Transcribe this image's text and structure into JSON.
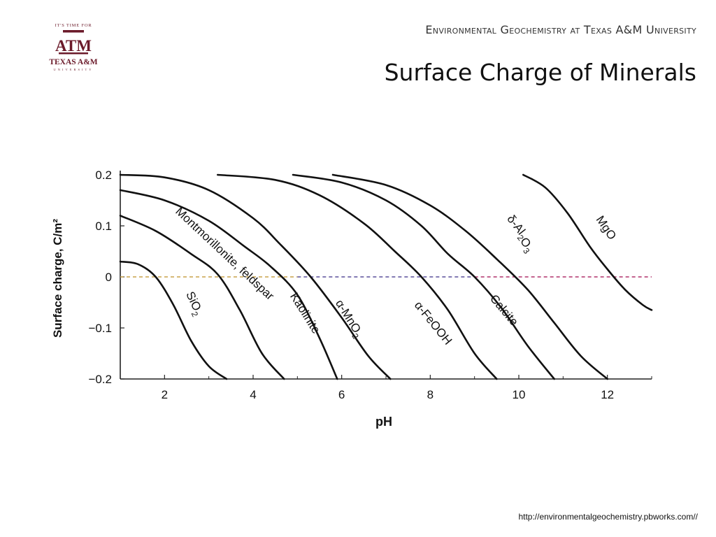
{
  "header": {
    "institution_line": "Environmental Geochemistry at Texas A&M University",
    "slide_title": "Surface Charge of Minerals"
  },
  "logo": {
    "tagline": "IT'S TIME FOR",
    "mark": "ATM",
    "name": "TEXAS A&M",
    "subname": "UNIVERSITY",
    "color": "#6b1a2a"
  },
  "footer": {
    "source_url": "http://environmentalgeochemistry.pbworks.com//"
  },
  "chart_data": {
    "type": "line",
    "xlabel": "pH",
    "ylabel": "Surface charge, C/m²",
    "xlim": [
      1,
      13
    ],
    "ylim": [
      -0.2,
      0.2
    ],
    "xticks": [
      2,
      4,
      6,
      8,
      10,
      12
    ],
    "xtick_labels": [
      "2",
      "4",
      "6",
      "8",
      "10",
      "12"
    ],
    "yticks": [
      0.2,
      0.1,
      0,
      -0.1,
      -0.2
    ],
    "ytick_labels": [
      "0.2",
      "0.1",
      "0",
      "−0.1",
      "−0.2"
    ],
    "zero_line": {
      "style": "dashed",
      "colors": [
        "#c9a24a",
        "#5a4e9a",
        "#b0306a"
      ]
    },
    "grid": false,
    "legend": "none",
    "curve_color": "#111111",
    "series": [
      {
        "name": "SiO₂",
        "label_math": "SiO|2",
        "x": [
          1.0,
          1.4,
          1.8,
          2.2,
          2.6,
          3.0,
          3.4
        ],
        "y": [
          0.03,
          0.025,
          0.0,
          -0.055,
          -0.125,
          -0.175,
          -0.2
        ]
      },
      {
        "name": "Montmorillonite, feldspar",
        "label_math": "Montmorillonite, feldspar",
        "x": [
          1.0,
          1.8,
          2.6,
          3.2,
          3.7,
          4.2,
          4.7
        ],
        "y": [
          0.12,
          0.09,
          0.045,
          0.005,
          -0.065,
          -0.15,
          -0.2
        ]
      },
      {
        "name": "Kaolinite",
        "label_math": "Kaolinite",
        "x": [
          1.0,
          2.0,
          3.0,
          3.8,
          4.4,
          5.0,
          5.5,
          5.9
        ],
        "y": [
          0.17,
          0.15,
          0.11,
          0.06,
          0.02,
          -0.035,
          -0.12,
          -0.2
        ]
      },
      {
        "name": "α-MnO₂",
        "label_math": "α-MnO|2",
        "x": [
          1.0,
          2.0,
          3.0,
          4.0,
          4.6,
          5.3,
          6.0,
          6.6,
          7.1
        ],
        "y": [
          0.2,
          0.195,
          0.17,
          0.115,
          0.065,
          0.0,
          -0.08,
          -0.155,
          -0.2
        ]
      },
      {
        "name": "α-FeOOH",
        "label_math": "α-FeOOH",
        "x": [
          3.2,
          4.5,
          5.5,
          6.5,
          7.2,
          7.8,
          8.4,
          9.0,
          9.5
        ],
        "y": [
          0.2,
          0.19,
          0.16,
          0.105,
          0.05,
          0.0,
          -0.065,
          -0.15,
          -0.2
        ]
      },
      {
        "name": "Calcite",
        "label_math": "Calcite",
        "x": [
          4.9,
          6.0,
          7.0,
          7.8,
          8.4,
          9.0,
          9.6,
          10.2,
          10.8
        ],
        "y": [
          0.2,
          0.185,
          0.15,
          0.1,
          0.045,
          0.0,
          -0.06,
          -0.135,
          -0.2
        ]
      },
      {
        "name": "δ-Al₂O₃",
        "label_math": "δ-Al|2O|3",
        "x": [
          5.8,
          7.0,
          8.0,
          8.8,
          9.5,
          10.2,
          10.8,
          11.4,
          12.0
        ],
        "y": [
          0.2,
          0.18,
          0.14,
          0.09,
          0.035,
          -0.025,
          -0.09,
          -0.155,
          -0.2
        ]
      },
      {
        "name": "MgO",
        "label_math": "MgO",
        "x": [
          10.1,
          10.6,
          11.1,
          11.6,
          12.0,
          12.4,
          12.8,
          13.0
        ],
        "y": [
          0.2,
          0.175,
          0.125,
          0.06,
          0.015,
          -0.025,
          -0.055,
          -0.065
        ]
      }
    ],
    "curve_labels": [
      {
        "series": "SiO₂",
        "x": 2.6,
        "y": -0.055,
        "angle": 65
      },
      {
        "series": "Montmorillonite, feldspar",
        "x": 3.3,
        "y": 0.04,
        "angle": 43
      },
      {
        "series": "Kaolinite",
        "x": 5.1,
        "y": -0.075,
        "angle": 58
      },
      {
        "series": "α-MnO₂",
        "x": 6.1,
        "y": -0.085,
        "angle": 58
      },
      {
        "series": "α-FeOOH",
        "x": 8.0,
        "y": -0.095,
        "angle": 51
      },
      {
        "series": "Calcite",
        "x": 9.6,
        "y": -0.07,
        "angle": 50
      },
      {
        "series": "δ-Al₂O₃",
        "x": 10.0,
        "y": 0.083,
        "angle": 52
      },
      {
        "series": "MgO",
        "x": 11.9,
        "y": 0.092,
        "angle": 56
      }
    ]
  }
}
